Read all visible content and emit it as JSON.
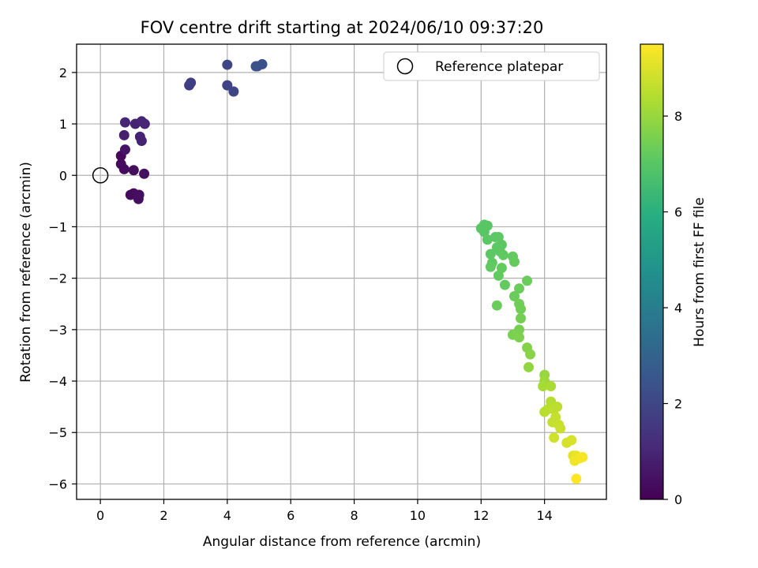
{
  "chart_data": {
    "type": "scatter",
    "title": "FOV centre drift starting at 2024/06/10 09:37:20",
    "xlabel": "Angular distance from reference (arcmin)",
    "ylabel": "Rotation from reference (arcmin)",
    "xlim": [
      -0.75,
      15.95
    ],
    "ylim": [
      -6.3,
      2.55
    ],
    "xticks": [
      0,
      2,
      4,
      6,
      8,
      10,
      12,
      14
    ],
    "yticks": [
      2,
      1,
      0,
      -1,
      -2,
      -3,
      -4,
      -5,
      -6
    ],
    "grid": true,
    "legend": {
      "position": "top-right",
      "entries": [
        "Reference platepar"
      ]
    },
    "colorbar": {
      "label": "Hours from first FF file",
      "range": [
        0,
        9.5
      ],
      "ticks": [
        0,
        2,
        4,
        6,
        8
      ],
      "colormap": "viridis"
    },
    "reference_point": {
      "x": 0,
      "y": 0
    },
    "points": [
      {
        "x": 0.65,
        "y": 0.38,
        "h": 0.2
      },
      {
        "x": 0.65,
        "y": 0.22,
        "h": 0.25
      },
      {
        "x": 0.75,
        "y": 0.12,
        "h": 0.3
      },
      {
        "x": 1.05,
        "y": 0.1,
        "h": 0.35
      },
      {
        "x": 1.38,
        "y": 0.03,
        "h": 0.4
      },
      {
        "x": 0.95,
        "y": -0.38,
        "h": 0.3
      },
      {
        "x": 1.05,
        "y": -0.35,
        "h": 0.3
      },
      {
        "x": 1.22,
        "y": -0.38,
        "h": 0.32
      },
      {
        "x": 1.2,
        "y": -0.46,
        "h": 0.35
      },
      {
        "x": 0.78,
        "y": 0.5,
        "h": 0.5
      },
      {
        "x": 0.78,
        "y": 1.03,
        "h": 1.0
      },
      {
        "x": 0.75,
        "y": 0.78,
        "h": 0.8
      },
      {
        "x": 1.1,
        "y": 1.0,
        "h": 0.9
      },
      {
        "x": 1.3,
        "y": 1.05,
        "h": 1.0
      },
      {
        "x": 1.4,
        "y": 1.0,
        "h": 1.0
      },
      {
        "x": 1.25,
        "y": 0.75,
        "h": 0.9
      },
      {
        "x": 1.3,
        "y": 0.67,
        "h": 0.9
      },
      {
        "x": 2.8,
        "y": 1.75,
        "h": 1.7
      },
      {
        "x": 2.85,
        "y": 1.8,
        "h": 1.75
      },
      {
        "x": 4.0,
        "y": 2.15,
        "h": 2.0
      },
      {
        "x": 4.0,
        "y": 1.75,
        "h": 1.9
      },
      {
        "x": 4.2,
        "y": 1.63,
        "h": 2.0
      },
      {
        "x": 4.9,
        "y": 2.12,
        "h": 2.3
      },
      {
        "x": 4.95,
        "y": 2.12,
        "h": 2.3
      },
      {
        "x": 5.1,
        "y": 2.16,
        "h": 2.35
      },
      {
        "x": 12.0,
        "y": -1.03,
        "h": 7.0
      },
      {
        "x": 12.1,
        "y": -0.96,
        "h": 7.0
      },
      {
        "x": 12.2,
        "y": -0.98,
        "h": 7.0
      },
      {
        "x": 12.1,
        "y": -1.1,
        "h": 7.0
      },
      {
        "x": 12.2,
        "y": -1.25,
        "h": 7.05
      },
      {
        "x": 12.45,
        "y": -1.2,
        "h": 7.05
      },
      {
        "x": 12.55,
        "y": -1.2,
        "h": 7.1
      },
      {
        "x": 12.5,
        "y": -1.4,
        "h": 7.1
      },
      {
        "x": 12.65,
        "y": -1.35,
        "h": 7.1
      },
      {
        "x": 12.3,
        "y": -1.53,
        "h": 7.1
      },
      {
        "x": 12.6,
        "y": -1.48,
        "h": 7.1
      },
      {
        "x": 12.7,
        "y": -1.55,
        "h": 7.15
      },
      {
        "x": 12.35,
        "y": -1.7,
        "h": 7.15
      },
      {
        "x": 12.3,
        "y": -1.78,
        "h": 7.15
      },
      {
        "x": 12.65,
        "y": -1.8,
        "h": 7.2
      },
      {
        "x": 12.55,
        "y": -1.95,
        "h": 7.2
      },
      {
        "x": 12.75,
        "y": -2.13,
        "h": 7.2
      },
      {
        "x": 13.0,
        "y": -1.58,
        "h": 7.2
      },
      {
        "x": 13.05,
        "y": -1.68,
        "h": 7.25
      },
      {
        "x": 12.5,
        "y": -2.53,
        "h": 7.3
      },
      {
        "x": 13.2,
        "y": -2.2,
        "h": 7.3
      },
      {
        "x": 13.05,
        "y": -2.35,
        "h": 7.3
      },
      {
        "x": 13.45,
        "y": -2.05,
        "h": 7.3
      },
      {
        "x": 13.2,
        "y": -2.5,
        "h": 7.4
      },
      {
        "x": 13.25,
        "y": -2.6,
        "h": 7.4
      },
      {
        "x": 13.25,
        "y": -2.78,
        "h": 7.45
      },
      {
        "x": 13.2,
        "y": -3.0,
        "h": 7.5
      },
      {
        "x": 13.0,
        "y": -3.1,
        "h": 7.55
      },
      {
        "x": 13.2,
        "y": -3.15,
        "h": 7.6
      },
      {
        "x": 13.45,
        "y": -3.35,
        "h": 7.7
      },
      {
        "x": 13.55,
        "y": -3.48,
        "h": 7.75
      },
      {
        "x": 13.5,
        "y": -3.73,
        "h": 7.9
      },
      {
        "x": 14.0,
        "y": -3.88,
        "h": 8.0
      },
      {
        "x": 14.0,
        "y": -4.0,
        "h": 8.1
      },
      {
        "x": 13.95,
        "y": -4.1,
        "h": 8.2
      },
      {
        "x": 14.2,
        "y": -4.1,
        "h": 8.25
      },
      {
        "x": 14.2,
        "y": -4.4,
        "h": 8.4
      },
      {
        "x": 14.1,
        "y": -4.55,
        "h": 8.5
      },
      {
        "x": 14.0,
        "y": -4.6,
        "h": 8.5
      },
      {
        "x": 14.3,
        "y": -4.55,
        "h": 8.55
      },
      {
        "x": 14.4,
        "y": -4.5,
        "h": 8.55
      },
      {
        "x": 14.25,
        "y": -4.8,
        "h": 8.65
      },
      {
        "x": 14.35,
        "y": -4.7,
        "h": 8.65
      },
      {
        "x": 14.45,
        "y": -4.85,
        "h": 8.7
      },
      {
        "x": 14.5,
        "y": -4.92,
        "h": 8.75
      },
      {
        "x": 14.3,
        "y": -5.1,
        "h": 8.8
      },
      {
        "x": 14.7,
        "y": -5.2,
        "h": 8.9
      },
      {
        "x": 14.85,
        "y": -5.15,
        "h": 8.95
      },
      {
        "x": 14.9,
        "y": -5.45,
        "h": 9.1
      },
      {
        "x": 15.0,
        "y": -5.45,
        "h": 9.2
      },
      {
        "x": 14.95,
        "y": -5.55,
        "h": 9.3
      },
      {
        "x": 15.1,
        "y": -5.5,
        "h": 9.35
      },
      {
        "x": 15.2,
        "y": -5.48,
        "h": 9.4
      },
      {
        "x": 15.0,
        "y": -5.9,
        "h": 9.5
      }
    ]
  }
}
